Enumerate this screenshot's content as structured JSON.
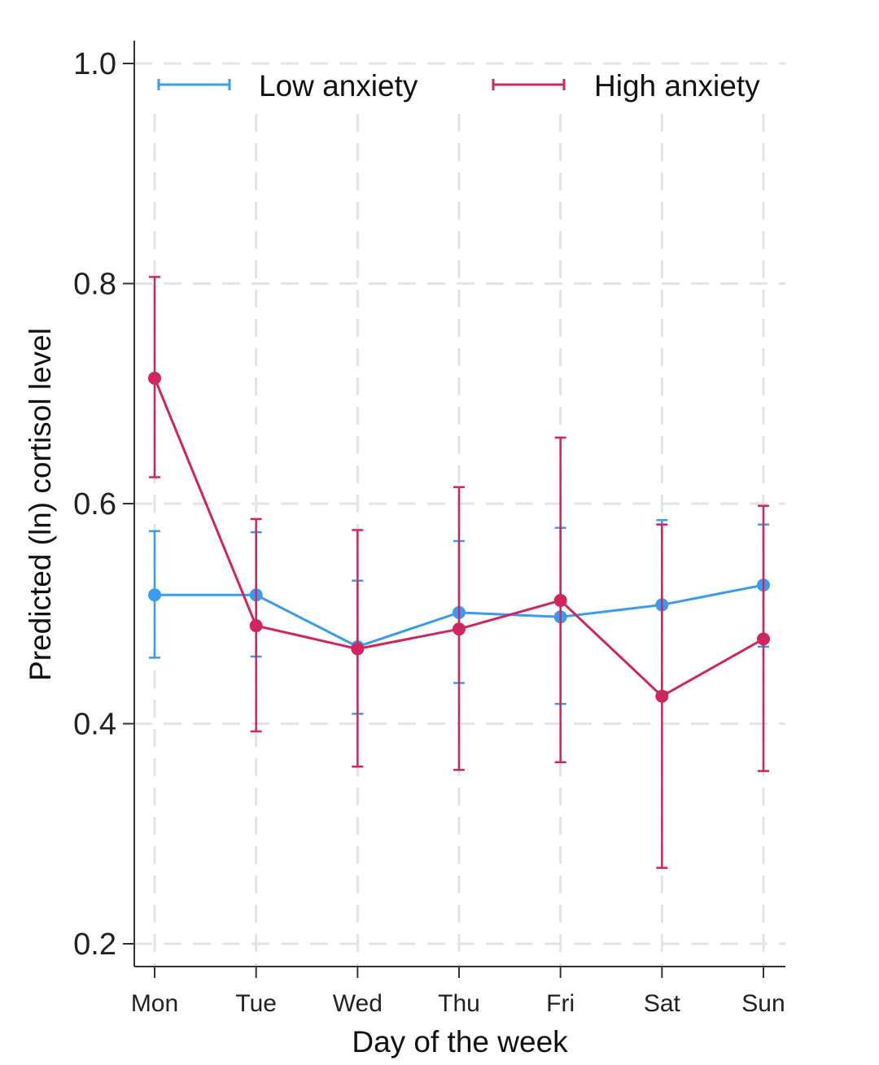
{
  "chart_data": {
    "type": "line",
    "xlabel": "Day of the week",
    "ylabel": "Predicted (ln) cortisol level",
    "categories": [
      "Mon",
      "Tue",
      "Wed",
      "Thu",
      "Fri",
      "Sat",
      "Sun"
    ],
    "ylim": [
      0.2,
      1.0
    ],
    "yticks": [
      0.2,
      0.4,
      0.6,
      0.8,
      1.0
    ],
    "ytick_labels": [
      "0.2",
      "0.4",
      "0.6",
      "0.8",
      "1.0"
    ],
    "grid": true,
    "legend_position": "top",
    "series": [
      {
        "name": "Low anxiety",
        "color": "#3a9cf0",
        "values": [
          0.517,
          0.517,
          0.47,
          0.501,
          0.497,
          0.508,
          0.526
        ],
        "ci_low": [
          0.46,
          0.461,
          0.409,
          0.437,
          0.418,
          0.429,
          0.47
        ],
        "ci_high": [
          0.575,
          0.574,
          0.53,
          0.566,
          0.578,
          0.585,
          0.581
        ]
      },
      {
        "name": "High anxiety",
        "color": "#d0255f",
        "values": [
          0.714,
          0.489,
          0.468,
          0.486,
          0.512,
          0.425,
          0.477
        ],
        "ci_low": [
          0.624,
          0.393,
          0.361,
          0.358,
          0.365,
          0.269,
          0.357
        ],
        "ci_high": [
          0.806,
          0.586,
          0.576,
          0.615,
          0.66,
          0.581,
          0.598
        ]
      }
    ]
  }
}
